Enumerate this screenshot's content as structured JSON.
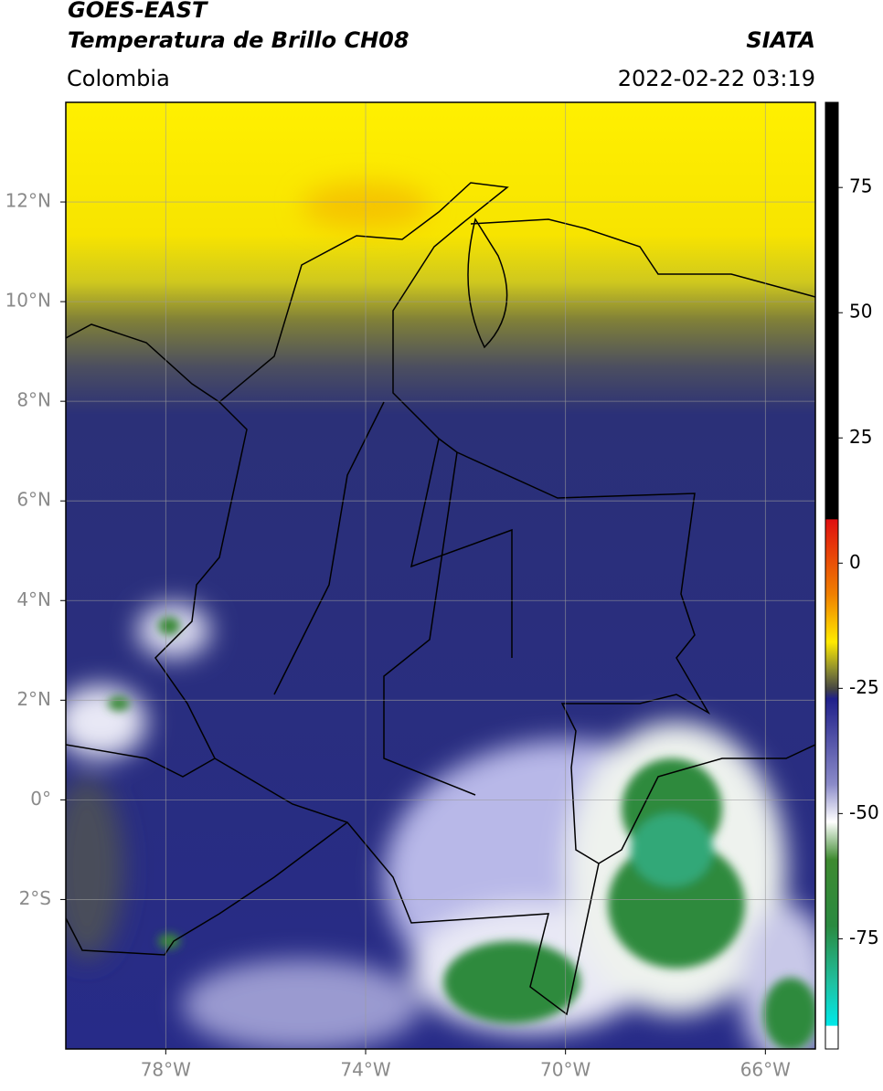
{
  "header": {
    "satellite": "GOES-EAST",
    "product": "Temperatura de Brillo CH08",
    "source": "SIATA",
    "region": "Colombia",
    "datetime": "2022-02-22 03:19"
  },
  "map": {
    "lonlim": [
      -80,
      -65
    ],
    "latlim": [
      -5,
      14
    ],
    "lonticks": [
      {
        "value": -78,
        "label": "78°W"
      },
      {
        "value": -74,
        "label": "74°W"
      },
      {
        "value": -70,
        "label": "70°W"
      },
      {
        "value": -66,
        "label": "66°W"
      }
    ],
    "latticks": [
      {
        "value": 12,
        "label": "12°N"
      },
      {
        "value": 10,
        "label": "10°N"
      },
      {
        "value": 8,
        "label": "8°N"
      },
      {
        "value": 6,
        "label": "6°N"
      },
      {
        "value": 4,
        "label": "4°N"
      },
      {
        "value": 2,
        "label": "2°N"
      },
      {
        "value": 0,
        "label": "0°"
      },
      {
        "value": -2,
        "label": "2°S"
      }
    ],
    "grid": true
  },
  "colorbar": {
    "lim": [
      -97,
      92
    ],
    "ticks": [
      75,
      50,
      25,
      0,
      -25,
      -50,
      -75
    ]
  }
}
